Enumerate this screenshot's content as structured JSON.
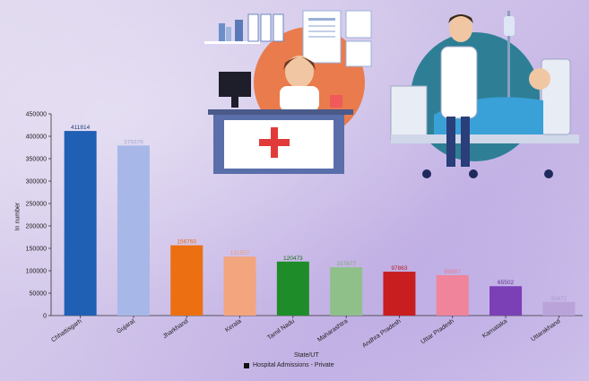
{
  "chart_data": {
    "type": "bar",
    "categories": [
      "Chhattisgarh",
      "Gujarat",
      "Jharkhand",
      "Kerala",
      "Tamil Nadu",
      "Maharashtra",
      "Andhra Pradesh",
      "Uttar Pradesh",
      "Karnataka",
      "Uttarakhand"
    ],
    "series": [
      {
        "name": "Hospital Admissions - Private",
        "values": [
          411814,
          379379,
          156760,
          131557,
          120473,
          107877,
          97863,
          89987,
          65502,
          30472
        ],
        "colors": [
          "#1f5fb4",
          "#a7b8e8",
          "#ec6f12",
          "#f3a57e",
          "#1f8c2a",
          "#8fc08a",
          "#c81e20",
          "#f0849a",
          "#7b3fb6",
          "#b9a3d9"
        ],
        "label_colors": [
          "#1f3f7a",
          "#9aa7d0",
          "#e06a10",
          "#e89a76",
          "#1e6a22",
          "#7aa878",
          "#b51d1f",
          "#e77a8f",
          "#5e2f8e",
          "#a79ad0"
        ]
      }
    ],
    "xlabel": "State/UT",
    "ylabel": "In number",
    "ylim": [
      0,
      450000
    ],
    "yticks": [
      0,
      50000,
      100000,
      150000,
      200000,
      250000,
      300000,
      350000,
      400000,
      450000
    ],
    "legend_position": "bottom-center",
    "grid": false
  }
}
